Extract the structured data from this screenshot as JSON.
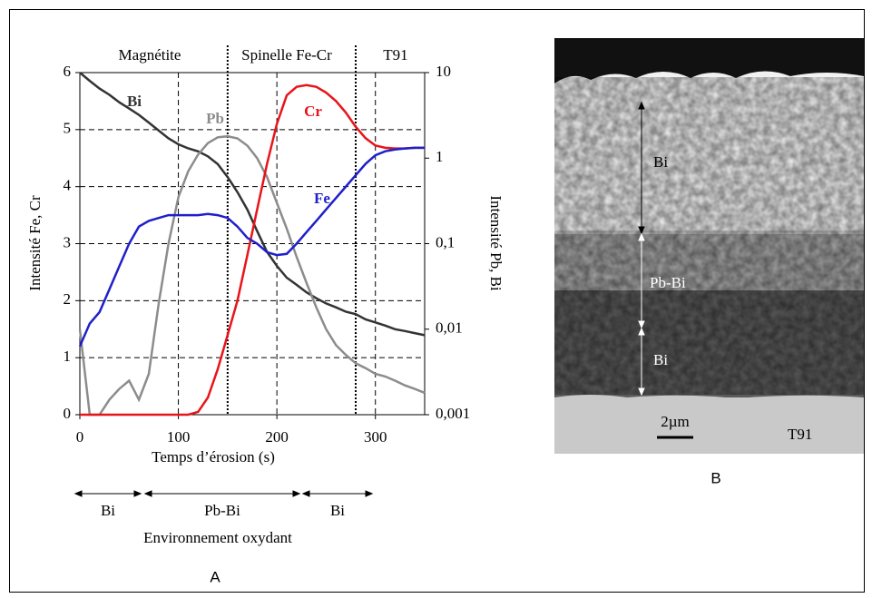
{
  "chart_data": {
    "type": "line",
    "x": [
      0,
      10,
      20,
      30,
      40,
      50,
      60,
      70,
      80,
      90,
      100,
      110,
      120,
      130,
      140,
      150,
      160,
      170,
      180,
      190,
      200,
      210,
      220,
      230,
      240,
      250,
      260,
      270,
      280,
      290,
      300,
      310,
      320,
      330,
      340,
      350
    ],
    "xlabel": "Temps d’érosion (s)",
    "ylabel": "Intensité Fe, Cr",
    "y2label": "Intensité Pb, Bi",
    "xlim": [
      0,
      350
    ],
    "xticks": [
      0,
      100,
      200,
      300
    ],
    "ylim": [
      0,
      6
    ],
    "yticks": [
      0,
      1,
      2,
      3,
      4,
      5,
      6
    ],
    "y2lim": [
      0.001,
      10
    ],
    "y2log": true,
    "y2ticks": [
      10,
      1,
      {
        "value": 0.1,
        "label": "0,1"
      },
      {
        "value": 0.01,
        "label": "0,01"
      },
      {
        "value": 0.001,
        "label": "0,001"
      }
    ],
    "grid": true,
    "boundaries": [
      150,
      280
    ],
    "zones": [
      "Magnétite",
      "Spinelle Fe-Cr",
      "T91"
    ],
    "series": [
      {
        "name": "Bi",
        "color": "#333333",
        "axis": "y2",
        "values": [
          10,
          8,
          6.5,
          5.5,
          4.5,
          3.8,
          3.2,
          2.6,
          2.1,
          1.7,
          1.45,
          1.3,
          1.2,
          1.05,
          0.85,
          0.6,
          0.4,
          0.25,
          0.14,
          0.08,
          0.055,
          0.04,
          0.033,
          0.027,
          0.023,
          0.02,
          0.018,
          0.016,
          0.015,
          0.013,
          0.012,
          0.011,
          0.01,
          0.0095,
          0.009,
          0.0085
        ]
      },
      {
        "name": "Pb",
        "color": "#8c8c8c",
        "axis": "y2",
        "values": [
          0.01,
          0.001,
          0.001,
          0.0015,
          0.002,
          0.0025,
          0.0015,
          0.003,
          0.02,
          0.1,
          0.35,
          0.7,
          1.1,
          1.5,
          1.75,
          1.8,
          1.7,
          1.4,
          1.0,
          0.6,
          0.3,
          0.15,
          0.07,
          0.035,
          0.018,
          0.01,
          0.0065,
          0.005,
          0.004,
          0.0035,
          0.003,
          0.0028,
          0.0025,
          0.0022,
          0.002,
          0.0018
        ]
      },
      {
        "name": "Cr",
        "color": "#e8141a",
        "values": [
          0,
          0,
          0,
          0,
          0,
          0,
          0,
          0,
          0,
          0,
          0,
          0,
          0.05,
          0.3,
          0.8,
          1.4,
          2.0,
          2.8,
          3.6,
          4.4,
          5.1,
          5.6,
          5.75,
          5.78,
          5.75,
          5.65,
          5.5,
          5.3,
          5.05,
          4.85,
          4.72,
          4.68,
          4.67,
          4.67,
          4.68,
          4.68
        ]
      },
      {
        "name": "Fe",
        "color": "#1f1fcc",
        "values": [
          1.2,
          1.6,
          1.8,
          2.2,
          2.6,
          3.0,
          3.3,
          3.4,
          3.45,
          3.5,
          3.5,
          3.5,
          3.5,
          3.52,
          3.5,
          3.45,
          3.3,
          3.1,
          3.0,
          2.85,
          2.8,
          2.82,
          3.0,
          3.2,
          3.4,
          3.6,
          3.8,
          4.0,
          4.2,
          4.4,
          4.55,
          4.62,
          4.65,
          4.67,
          4.68,
          4.68
        ]
      }
    ],
    "environment": {
      "segments": [
        "Bi",
        "Pb-Bi",
        "Bi"
      ],
      "label": "Environnement oxydant"
    },
    "panel_label": "A"
  },
  "micrograph": {
    "layers": [
      "Bi",
      "Pb-Bi",
      "Bi"
    ],
    "scale_bar": "2µm",
    "substrate": "T91",
    "panel_label": "B"
  }
}
